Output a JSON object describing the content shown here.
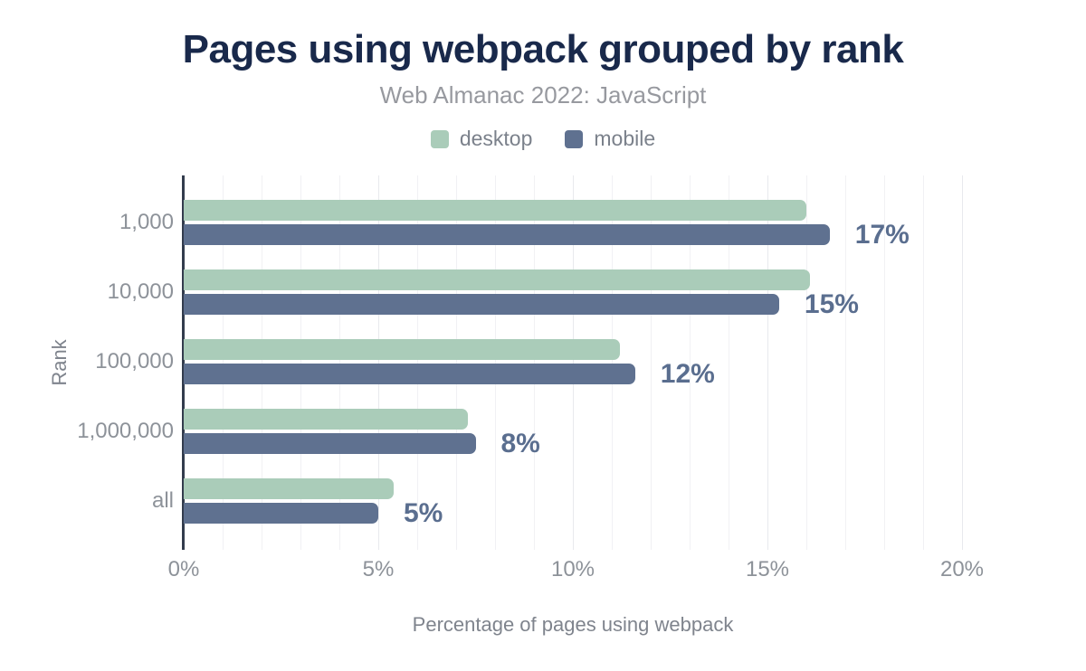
{
  "title": "Pages using webpack grouped by rank",
  "subtitle": "Web Almanac 2022: JavaScript",
  "legend": [
    {
      "label": "desktop",
      "color": "#aaccb9"
    },
    {
      "label": "mobile",
      "color": "#5f7190"
    }
  ],
  "chart_data": {
    "type": "bar",
    "orientation": "horizontal",
    "title": "Pages using webpack grouped by rank",
    "subtitle": "Web Almanac 2022: JavaScript",
    "categories": [
      "1,000",
      "10,000",
      "100,000",
      "1,000,000",
      "all"
    ],
    "series": [
      {
        "name": "desktop",
        "color": "#aaccb9",
        "values": [
          16.0,
          16.1,
          11.2,
          7.3,
          5.4
        ]
      },
      {
        "name": "mobile",
        "color": "#5f7190",
        "values": [
          16.6,
          15.3,
          11.6,
          7.5,
          5.0
        ]
      }
    ],
    "value_labels": [
      "17%",
      "15%",
      "12%",
      "8%",
      "5%"
    ],
    "xlabel": "Percentage of pages using webpack",
    "ylabel": "Rank",
    "x_ticks": [
      "0%",
      "5%",
      "10%",
      "15%",
      "20%"
    ],
    "x_tick_values": [
      0,
      5,
      10,
      15,
      20
    ],
    "xlim": [
      0,
      20
    ],
    "grid": "vertical minor every 1%, major every 5%",
    "legend_position": "top"
  },
  "colors": {
    "title": "#19294b",
    "subtitle": "#97999f",
    "axis_line": "#333c4d",
    "grid_minor": "#f1f1f4",
    "grid_major": "#e8e9ed",
    "tick_label": "#8d9299",
    "axis_title": "#7f848d",
    "value_label": "#5a6e8f"
  }
}
